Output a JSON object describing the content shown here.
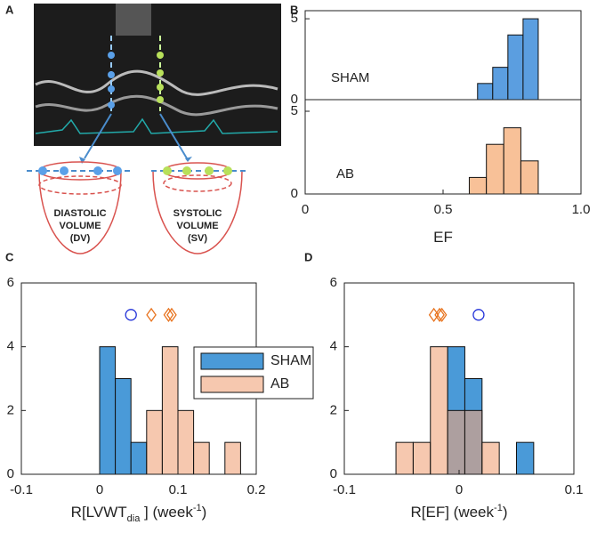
{
  "panel_a": {
    "label": "A",
    "left_lines": [
      "DIASTOLIC",
      "VOLUME",
      "(DV)"
    ],
    "right_lines": [
      "SYSTOLIC",
      "VOLUME",
      "(SV)"
    ]
  },
  "chart_data": [
    {
      "type": "histogram",
      "panel": "B",
      "annotation": "SHAM",
      "color": "#5b9ee0",
      "bins": [
        0.625,
        0.68,
        0.735,
        0.79,
        0.845
      ],
      "values": [
        1,
        2,
        4,
        5
      ],
      "xlim": [
        0,
        1
      ],
      "ylim": [
        0,
        5.5
      ],
      "yticks": [
        0,
        5
      ]
    },
    {
      "type": "histogram",
      "annotation": "AB",
      "color": "#f8c198",
      "bins": [
        0.595,
        0.657,
        0.72,
        0.782,
        0.845
      ],
      "values": [
        1,
        3,
        4,
        2
      ],
      "xlim": [
        0,
        1
      ],
      "ylim": [
        0,
        5.7
      ],
      "yticks": [
        0,
        5
      ],
      "xticks": [
        0,
        0.5,
        {
          "value": 1,
          "label": "1.0"
        }
      ],
      "xlabel": [
        "EF"
      ]
    },
    {
      "type": "histogram",
      "panel": "C",
      "series": [
        {
          "name": "SHAM",
          "color": "#4a9ad8",
          "bins": [
            0,
            0.02,
            0.04,
            0.06
          ],
          "values": [
            4,
            3,
            1
          ]
        },
        {
          "name": "AB",
          "color": "#f0a47a",
          "bins": [
            0.06,
            0.08,
            0.1,
            0.12,
            0.14,
            0.16,
            0.18
          ],
          "values": [
            2,
            4,
            2,
            1,
            0,
            1
          ]
        }
      ],
      "points": [
        {
          "marker": "circle",
          "color": "#1f2fd8",
          "x": [
            0.04
          ],
          "y": [
            5
          ]
        },
        {
          "marker": "diamond",
          "color": "#e8731e",
          "x": [
            0.066,
            0.088,
            0.092
          ],
          "y": [
            5,
            5,
            5
          ]
        }
      ],
      "xlim": [
        -0.1,
        0.2
      ],
      "ylim": [
        0,
        6
      ],
      "xticks": [
        -0.1,
        0,
        0.1,
        0.2
      ],
      "yticks": [
        0,
        2,
        4,
        6
      ],
      "xlabel": [
        "R[LVWT",
        "dia",
        " ]  (week",
        "-1",
        ")"
      ],
      "legend": "inside-right"
    },
    {
      "type": "histogram",
      "panel": "D",
      "series": [
        {
          "name": "SHAM",
          "color": "#4a9ad8",
          "bins": [
            -0.01,
            0.005,
            0.02,
            0.035,
            0.05,
            0.065
          ],
          "values": [
            4,
            3,
            0,
            0,
            1
          ]
        },
        {
          "name": "AB",
          "color": "#f0a47a",
          "bins": [
            -0.055,
            -0.04,
            -0.025,
            -0.01,
            0.005,
            0.02,
            0.035
          ],
          "values": [
            1,
            1,
            4,
            2,
            2,
            1
          ]
        }
      ],
      "points": [
        {
          "marker": "circle",
          "color": "#1f2fd8",
          "x": [
            0.017
          ],
          "y": [
            5
          ]
        },
        {
          "marker": "diamond",
          "color": "#e8731e",
          "x": [
            -0.022,
            -0.017,
            -0.015
          ],
          "y": [
            5,
            5,
            5
          ]
        }
      ],
      "xlim": [
        -0.1,
        0.1
      ],
      "ylim": [
        0,
        6
      ],
      "xticks": [
        -0.1,
        0,
        0.1
      ],
      "yticks": [
        0,
        2,
        4,
        6
      ],
      "xlabel": [
        "R[EF]  (week",
        "-1",
        ")"
      ]
    }
  ]
}
